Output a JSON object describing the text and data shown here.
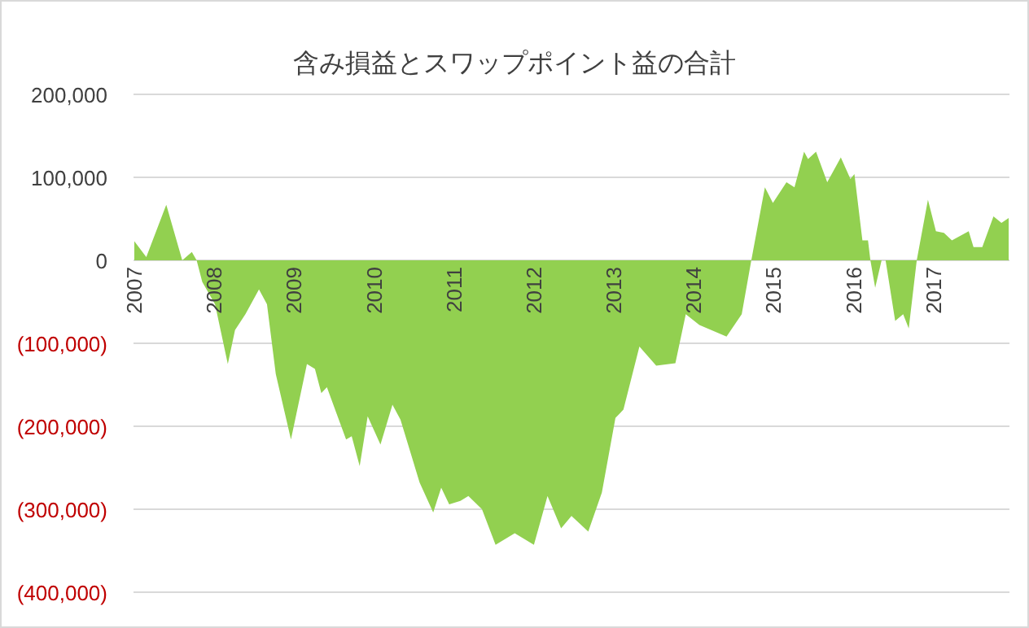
{
  "chart_data": {
    "type": "area",
    "title": "含み損益とスワップポイント益の合計",
    "color": "#92d050",
    "grid": "y",
    "x": [
      2007.01,
      2007.16,
      2007.41,
      2007.61,
      2007.73,
      2007.79,
      2007.86,
      2008.02,
      2008.18,
      2008.27,
      2008.4,
      2008.57,
      2008.67,
      2008.78,
      2008.97,
      2009.17,
      2009.27,
      2009.35,
      2009.42,
      2009.66,
      2009.73,
      2009.83,
      2009.93,
      2010.09,
      2010.24,
      2010.34,
      2010.58,
      2010.75,
      2010.85,
      2010.95,
      2011.09,
      2011.19,
      2011.36,
      2011.53,
      2011.77,
      2012.01,
      2012.18,
      2012.35,
      2012.48,
      2012.69,
      2012.86,
      2013.03,
      2013.13,
      2013.33,
      2013.54,
      2013.78,
      2013.91,
      2014.08,
      2014.42,
      2014.61,
      2014.73,
      2014.9,
      2015.0,
      2015.17,
      2015.27,
      2015.39,
      2015.44,
      2015.54,
      2015.68,
      2015.85,
      2015.97,
      2016.02,
      2016.12,
      2016.19,
      2016.22,
      2016.28,
      2016.36,
      2016.41,
      2016.53,
      2016.63,
      2016.7,
      2016.8,
      2016.94,
      2017.04,
      2017.14,
      2017.24,
      2017.45,
      2017.51,
      2017.62,
      2017.76,
      2017.86,
      2017.95
    ],
    "values": [
      23000,
      4000,
      67000,
      0,
      10000,
      0,
      -26000,
      -53000,
      -125000,
      -84000,
      -65000,
      -35000,
      -53000,
      -137000,
      -216000,
      -125000,
      -131000,
      -160000,
      -153000,
      -216000,
      -212000,
      -248000,
      -188000,
      -222000,
      -174000,
      -192000,
      -268000,
      -304000,
      -274000,
      -294000,
      -290000,
      -284000,
      -300000,
      -343000,
      -329000,
      -343000,
      -284000,
      -323000,
      -308000,
      -327000,
      -280000,
      -190000,
      -180000,
      -104000,
      -127000,
      -124000,
      -65000,
      -78000,
      -92000,
      -65000,
      0,
      88000,
      69000,
      94000,
      88000,
      131000,
      122000,
      131000,
      94000,
      124000,
      98000,
      104000,
      24000,
      24000,
      0,
      -33000,
      0,
      0,
      -73000,
      -65000,
      -82000,
      0,
      73000,
      35000,
      33000,
      24000,
      35000,
      16000,
      16000,
      53000,
      45000,
      51000
    ],
    "xlim": [
      2007,
      2017.96
    ],
    "xticks": [
      2007,
      2008,
      2009,
      2010,
      2011,
      2012,
      2013,
      2014,
      2015,
      2016,
      2017
    ],
    "ylim": [
      -400000,
      200000
    ],
    "yticks": [
      {
        "value": -400000,
        "label": "(400,000)"
      },
      {
        "value": -300000,
        "label": "(300,000)"
      },
      {
        "value": -200000,
        "label": "(200,000)"
      },
      {
        "value": -100000,
        "label": "(100,000)"
      },
      0,
      {
        "value": 100000,
        "label": "100,000"
      },
      {
        "value": 200000,
        "label": "200,000"
      }
    ]
  }
}
